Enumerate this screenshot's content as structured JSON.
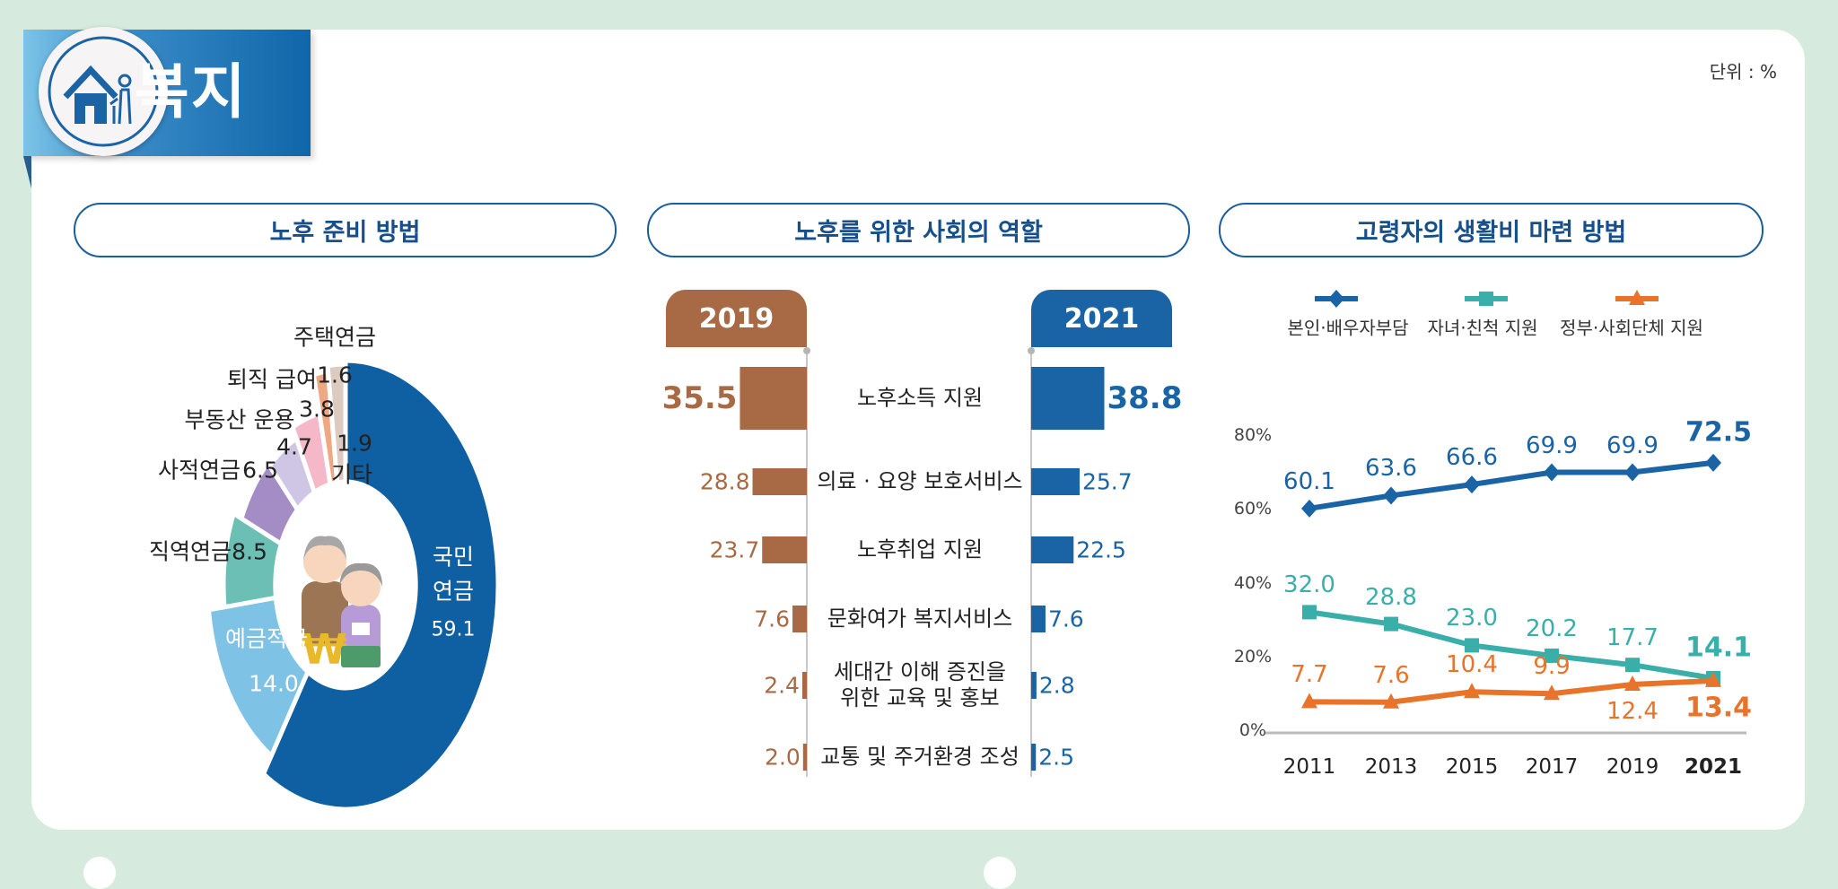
{
  "header": {
    "title": "복지",
    "icon": "house-elderly-icon",
    "unit": "단위 : %"
  },
  "colors": {
    "brand_blue": "#1a64a6",
    "brown": "#a86a45",
    "teal": "#3aafa9",
    "orange": "#e8732a"
  },
  "sections": {
    "retirement_prep": "노후 준비 방법",
    "social_role": "노후를 위한 사회의 역할",
    "living_cost": "고령자의 생활비 마련 방법"
  },
  "chart_data": [
    {
      "type": "pie",
      "title": "노후 준비 방법",
      "categories": [
        "국민연금",
        "예금적금",
        "직역연금",
        "사적연금",
        "부동산 운용",
        "퇴직 급여",
        "주택연금",
        "기타"
      ],
      "values": [
        59.1,
        14.0,
        8.5,
        6.5,
        4.7,
        3.8,
        1.6,
        1.9
      ],
      "colors": [
        "#0f5fa3",
        "#7ec3e6",
        "#6bbfb5",
        "#a48cc4",
        "#cfc6e6",
        "#f4b8c8",
        "#f0a882",
        "#dccbc0"
      ],
      "display_labels": {
        "pension_line1": "국민",
        "pension_line2": "연금"
      },
      "center_image": "elderly-couple-with-money-illustration"
    },
    {
      "type": "bar",
      "title": "노후를 위한 사회의 역할",
      "categories": [
        "노후소득 지원",
        "의료 · 요양 보호서비스",
        "노후취업 지원",
        "문화여가 복지서비스",
        "세대간 이해 증진을 위한 교육 및 홍보",
        "교통 및 주거환경 조성"
      ],
      "category_lines": [
        [
          "노후소득 지원"
        ],
        [
          "의료 · 요양 보호서비스"
        ],
        [
          "노후취업 지원"
        ],
        [
          "문화여가 복지서비스"
        ],
        [
          "세대간 이해 증진을",
          "위한 교육 및 홍보"
        ],
        [
          "교통 및 주거환경 조성"
        ]
      ],
      "series": [
        {
          "name": "2019",
          "values": [
            35.5,
            28.8,
            23.7,
            7.6,
            2.4,
            2.0
          ],
          "labels": [
            "35.5",
            "28.8",
            "23.7",
            "7.6",
            "2.4",
            "2.0"
          ]
        },
        {
          "name": "2021",
          "values": [
            38.8,
            25.7,
            22.5,
            7.6,
            2.8,
            2.5
          ],
          "labels": [
            "38.8",
            "25.7",
            "22.5",
            "7.6",
            "2.8",
            "2.5"
          ]
        }
      ]
    },
    {
      "type": "line",
      "title": "고령자의 생활비 마련 방법",
      "x": [
        "2011",
        "2013",
        "2015",
        "2017",
        "2019",
        "2021"
      ],
      "ylim": [
        0,
        80
      ],
      "yticks": [
        "0%",
        "20%",
        "40%",
        "60%",
        "80%"
      ],
      "legend": "top",
      "series": [
        {
          "name": "본인·배우자부담",
          "marker": "diamond",
          "values": [
            60.1,
            63.6,
            66.6,
            69.9,
            69.9,
            72.5
          ],
          "labels": [
            "60.1",
            "63.6",
            "66.6",
            "69.9",
            "69.9",
            "72.5"
          ]
        },
        {
          "name": "자녀·친척 지원",
          "marker": "square",
          "values": [
            32.0,
            28.8,
            23.0,
            20.2,
            17.7,
            14.1
          ],
          "labels": [
            "32.0",
            "28.8",
            "23.0",
            "20.2",
            "17.7",
            "14.1"
          ]
        },
        {
          "name": "정부·사회단체 지원",
          "marker": "triangle",
          "values": [
            7.7,
            7.6,
            10.4,
            9.9,
            12.4,
            13.4
          ],
          "labels": [
            "7.7",
            "7.6",
            "10.4",
            "9.9",
            "12.4",
            "13.4"
          ]
        }
      ]
    }
  ]
}
